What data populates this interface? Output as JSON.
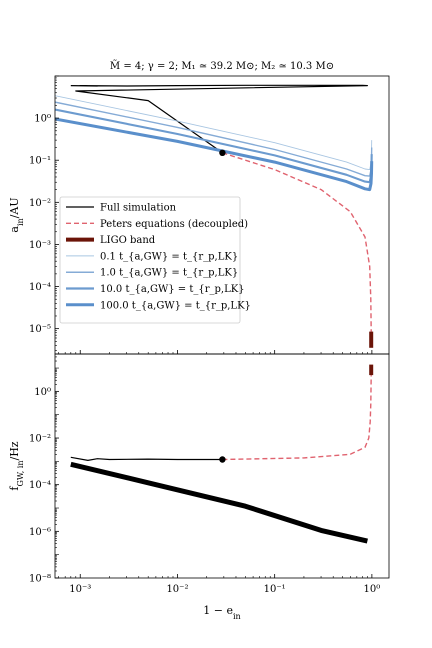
{
  "chart_data": [
    {
      "type": "line",
      "title": "M̃ = 4; γ = 2; M₁ ≃ 39.2 M⊙; M₂ ≃ 10.3 M⊙",
      "ylabel": "a_in / AU",
      "xscale": "log",
      "yscale": "log",
      "xlim": [
        0.00055,
        1.5
      ],
      "ylim": [
        2.5e-06,
        10
      ],
      "grid": false,
      "legend_position": "center-left",
      "yticks": [
        {
          "value": 1,
          "label": "10⁰"
        },
        {
          "value": 0.1,
          "label": "10⁻¹"
        },
        {
          "value": 0.01,
          "label": "10⁻²"
        },
        {
          "value": 0.001,
          "label": "10⁻³"
        },
        {
          "value": 0.0001,
          "label": "10⁻⁴"
        },
        {
          "value": 1e-05,
          "label": "10⁻⁵"
        }
      ],
      "series": [
        {
          "name": "Full simulation",
          "color": "#000000",
          "style": "solid",
          "points": [
            [
              0.0008,
              5.9
            ],
            [
              0.0015,
              5.8
            ],
            [
              0.001,
              5.9
            ],
            [
              0.003,
              5.8
            ],
            [
              0.01,
              5.9
            ],
            [
              0.05,
              6.0
            ],
            [
              0.2,
              6.0
            ],
            [
              0.8,
              6.0
            ],
            [
              0.9,
              5.9
            ],
            [
              0.0009,
              4.4
            ],
            [
              0.005,
              2.6
            ],
            [
              0.029,
              0.15
            ]
          ]
        },
        {
          "name": "Peters equations (decoupled)",
          "color": "#e0636f",
          "style": "dashed",
          "points": [
            [
              0.029,
              0.15
            ],
            [
              0.1,
              0.06
            ],
            [
              0.3,
              0.02
            ],
            [
              0.6,
              0.006
            ],
            [
              0.85,
              0.0015
            ],
            [
              0.95,
              0.0003
            ],
            [
              0.975,
              5e-05
            ],
            [
              0.985,
              8.5e-06
            ]
          ]
        },
        {
          "name": "LIGO band",
          "color": "#6b1408",
          "style": "thick",
          "points": [
            [
              0.985,
              8.5e-06
            ],
            [
              0.985,
              3.5e-06
            ]
          ]
        },
        {
          "name": "0.1 t_{a,GW} = t_{r_p,LK}",
          "color": "#a9c6e2",
          "style": "solid",
          "points": [
            [
              0.00055,
              3.4
            ],
            [
              0.01,
              0.85
            ],
            [
              0.1,
              0.26
            ],
            [
              0.55,
              0.09
            ],
            [
              0.85,
              0.062
            ],
            [
              0.95,
              0.06
            ],
            [
              0.98,
              0.085
            ],
            [
              0.99,
              0.15
            ],
            [
              0.995,
              0.3
            ]
          ]
        },
        {
          "name": "1.0 t_{a,GW} = t_{r_p,LK}",
          "color": "#85abd6",
          "style": "solid",
          "points": [
            [
              0.00055,
              2.4
            ],
            [
              0.01,
              0.6
            ],
            [
              0.1,
              0.18
            ],
            [
              0.55,
              0.062
            ],
            [
              0.85,
              0.043
            ],
            [
              0.95,
              0.042
            ],
            [
              0.98,
              0.06
            ],
            [
              0.99,
              0.1
            ],
            [
              0.995,
              0.2
            ]
          ]
        },
        {
          "name": "10.0 t_{a,GW} = t_{r_p,LK}",
          "color": "#6c9bcf",
          "style": "solid",
          "points": [
            [
              0.00055,
              1.6
            ],
            [
              0.01,
              0.42
            ],
            [
              0.1,
              0.13
            ],
            [
              0.55,
              0.045
            ],
            [
              0.85,
              0.031
            ],
            [
              0.95,
              0.03
            ],
            [
              0.98,
              0.042
            ],
            [
              0.99,
              0.07
            ],
            [
              0.995,
              0.14
            ]
          ]
        },
        {
          "name": "100.0 t_{a,GW} = t_{r_p,LK}",
          "color": "#5a8fcb",
          "style": "solid",
          "points": [
            [
              0.00055,
              0.95
            ],
            [
              0.01,
              0.28
            ],
            [
              0.1,
              0.09
            ],
            [
              0.55,
              0.031
            ],
            [
              0.85,
              0.021
            ],
            [
              0.95,
              0.02
            ],
            [
              0.98,
              0.028
            ],
            [
              0.99,
              0.048
            ],
            [
              0.995,
              0.095
            ]
          ]
        }
      ],
      "markers": [
        {
          "x": 0.029,
          "y": 0.15
        }
      ]
    },
    {
      "type": "line",
      "xlabel": "1 − e_in",
      "ylabel": "f_GW,in / Hz",
      "xscale": "log",
      "yscale": "log",
      "xlim": [
        0.00055,
        1.5
      ],
      "ylim": [
        1e-08,
        40
      ],
      "xticks": [
        {
          "value": 0.001,
          "label": "10⁻³"
        },
        {
          "value": 0.01,
          "label": "10⁻²"
        },
        {
          "value": 0.1,
          "label": "10⁻¹"
        },
        {
          "value": 1,
          "label": "10⁰"
        }
      ],
      "yticks": [
        {
          "value": 1,
          "label": "10⁰"
        },
        {
          "value": 0.01,
          "label": "10⁻²"
        },
        {
          "value": 0.0001,
          "label": "10⁻⁴"
        },
        {
          "value": 1e-06,
          "label": "10⁻⁶"
        },
        {
          "value": 1e-08,
          "label": "10⁻⁸"
        }
      ],
      "series": [
        {
          "name": "Full simulation",
          "color": "#000000",
          "style": "solid",
          "points": [
            [
              0.0008,
              0.0015
            ],
            [
              0.0012,
              0.0011
            ],
            [
              0.0015,
              0.0013
            ],
            [
              0.002,
              0.0012
            ],
            [
              0.005,
              0.00125
            ],
            [
              0.01,
              0.0012
            ],
            [
              0.029,
              0.0012
            ]
          ]
        },
        {
          "name": "Full simulation (band)",
          "color": "#000000",
          "style": "thick",
          "points": [
            [
              0.0008,
              0.00075
            ],
            [
              0.005,
              0.00012
            ],
            [
              0.05,
              1.2e-05
            ],
            [
              0.3,
              1.1e-06
            ],
            [
              0.9,
              3.8e-07
            ]
          ]
        },
        {
          "name": "Peters equations (decoupled)",
          "color": "#e0636f",
          "style": "dashed",
          "points": [
            [
              0.029,
              0.0012
            ],
            [
              0.2,
              0.0014
            ],
            [
              0.6,
              0.002
            ],
            [
              0.85,
              0.004
            ],
            [
              0.93,
              0.01
            ],
            [
              0.96,
              0.05
            ],
            [
              0.975,
              0.3
            ],
            [
              0.985,
              5
            ]
          ]
        },
        {
          "name": "LIGO band",
          "color": "#6b1408",
          "style": "thick",
          "points": [
            [
              0.985,
              5
            ],
            [
              0.985,
              14
            ]
          ]
        }
      ],
      "markers": [
        {
          "x": 0.029,
          "y": 0.0012
        }
      ]
    }
  ],
  "legend": {
    "items": [
      {
        "label": "Full simulation",
        "color": "#000000",
        "style": "solid",
        "width": 1.2
      },
      {
        "label": "Peters equations (decoupled)",
        "color": "#e0636f",
        "style": "dashed",
        "width": 1.4
      },
      {
        "label": "LIGO band",
        "color": "#6b1408",
        "style": "solid",
        "width": 4
      },
      {
        "label": "0.1 t_{a,GW} = t_{r_p,LK}",
        "color": "#a9c6e2",
        "style": "solid",
        "width": 1
      },
      {
        "label": "1.0 t_{a,GW} = t_{r_p,LK}",
        "color": "#85abd6",
        "style": "solid",
        "width": 1.5
      },
      {
        "label": "10.0 t_{a,GW} = t_{r_p,LK}",
        "color": "#6c9bcf",
        "style": "solid",
        "width": 2.2
      },
      {
        "label": "100.0 t_{a,GW} = t_{r_p,LK}",
        "color": "#5a8fcb",
        "style": "solid",
        "width": 3
      }
    ]
  }
}
